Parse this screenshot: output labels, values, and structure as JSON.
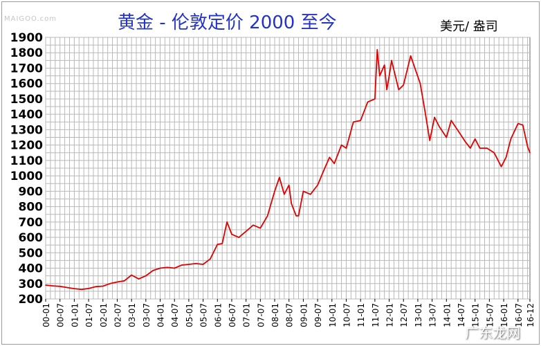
{
  "header": {
    "watermark": "MAIGOO.com",
    "title": "黄金 - 伦敦定价 2000 至今",
    "unit": "美元/ 盎司"
  },
  "badge": "广东龙网",
  "colors": {
    "line": "#e00000",
    "grid": "#b8b8b8",
    "title": "#2233cc"
  },
  "chart_data": {
    "type": "line",
    "title": "黄金 - 伦敦定价 2000 至今",
    "ylabel": "美元/ 盎司",
    "ylim": [
      200,
      1900
    ],
    "yticks": [
      200,
      300,
      400,
      500,
      600,
      700,
      800,
      900,
      1000,
      1100,
      1200,
      1300,
      1400,
      1500,
      1600,
      1700,
      1800,
      1900
    ],
    "xlim": [
      "2000-01",
      "2016-12"
    ],
    "xticks": [
      "00-01",
      "00-07",
      "01-01",
      "01-07",
      "02-01",
      "02-07",
      "03-01",
      "03-07",
      "04-01",
      "04-07",
      "05-01",
      "05-07",
      "06-01",
      "06-07",
      "07-01",
      "07-07",
      "08-01",
      "08-07",
      "09-01",
      "09-07",
      "10-01",
      "10-07",
      "11-01",
      "11-07",
      "12-01",
      "12-07",
      "13-01",
      "13-07",
      "14-01",
      "14-07",
      "15-01",
      "15-07",
      "16-01",
      "16-07",
      "16-12"
    ],
    "grid": true,
    "series": [
      {
        "x": [
          "2000-01",
          "2000-04",
          "2000-07",
          "2000-10",
          "2001-01",
          "2001-04",
          "2001-07",
          "2001-10",
          "2002-01",
          "2002-04",
          "2002-07",
          "2002-10",
          "2003-01",
          "2003-04",
          "2003-07",
          "2003-10",
          "2004-01",
          "2004-04",
          "2004-07",
          "2004-10",
          "2005-01",
          "2005-04",
          "2005-07",
          "2005-10",
          "2006-01",
          "2006-03",
          "2006-05",
          "2006-07",
          "2006-10",
          "2007-01",
          "2007-04",
          "2007-07",
          "2007-10",
          "2008-01",
          "2008-03",
          "2008-05",
          "2008-07",
          "2008-08",
          "2008-10",
          "2008-11",
          "2009-01",
          "2009-04",
          "2009-07",
          "2009-10",
          "2009-12",
          "2010-02",
          "2010-05",
          "2010-07",
          "2010-10",
          "2011-01",
          "2011-04",
          "2011-07",
          "2011-08",
          "2011-09",
          "2011-11",
          "2011-12",
          "2012-01",
          "2012-02",
          "2012-05",
          "2012-07",
          "2012-10",
          "2012-12",
          "2013-02",
          "2013-04",
          "2013-06",
          "2013-08",
          "2013-10",
          "2014-01",
          "2014-03",
          "2014-06",
          "2014-09",
          "2014-11",
          "2015-01",
          "2015-03",
          "2015-06",
          "2015-09",
          "2015-12",
          "2016-02",
          "2016-04",
          "2016-07",
          "2016-09",
          "2016-11",
          "2016-12"
        ],
        "values": [
          290,
          285,
          282,
          274,
          267,
          262,
          268,
          280,
          283,
          300,
          310,
          318,
          355,
          330,
          350,
          385,
          400,
          405,
          400,
          420,
          425,
          430,
          425,
          460,
          555,
          560,
          700,
          620,
          600,
          640,
          680,
          660,
          740,
          900,
          990,
          880,
          940,
          820,
          740,
          740,
          900,
          880,
          940,
          1050,
          1120,
          1080,
          1200,
          1180,
          1350,
          1360,
          1480,
          1500,
          1820,
          1650,
          1720,
          1560,
          1650,
          1750,
          1560,
          1590,
          1780,
          1690,
          1600,
          1420,
          1230,
          1380,
          1320,
          1250,
          1360,
          1290,
          1220,
          1180,
          1240,
          1180,
          1180,
          1150,
          1060,
          1120,
          1240,
          1340,
          1330,
          1190,
          1150
        ]
      }
    ]
  }
}
